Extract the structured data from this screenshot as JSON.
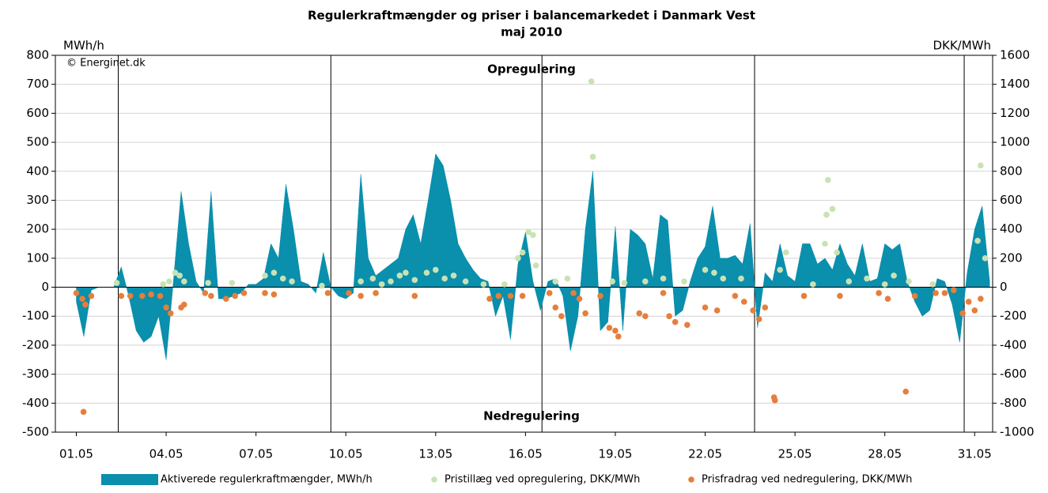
{
  "chart_data": {
    "type": "area",
    "title": "Regulerkraftmængder og priser i balancemarkedet i Danmark Vest",
    "subtitle": "maj 2010",
    "ylabel": "MWh/h",
    "y2label": "DKK/MWh",
    "source": "© Energinet.dk",
    "annotations": [
      "Opregulering",
      "Nedregulering"
    ],
    "grid": true,
    "xlim": [
      0.3,
      31.6
    ],
    "xticks": [
      {
        "value": 1,
        "label": "01.05"
      },
      {
        "value": 4,
        "label": "04.05"
      },
      {
        "value": 7,
        "label": "07.05"
      },
      {
        "value": 10,
        "label": "10.05"
      },
      {
        "value": 13,
        "label": "13.05"
      },
      {
        "value": 16,
        "label": "16.05"
      },
      {
        "value": 19,
        "label": "19.05"
      },
      {
        "value": 22,
        "label": "22.05"
      },
      {
        "value": 25,
        "label": "25.05"
      },
      {
        "value": 28,
        "label": "28.05"
      },
      {
        "value": 31,
        "label": "31.05"
      }
    ],
    "week_lines": [
      2.4,
      9.5,
      16.55,
      23.65,
      30.65
    ],
    "ylim": [
      -500,
      800
    ],
    "yticks": [
      -500,
      -400,
      -300,
      -200,
      -100,
      0,
      100,
      200,
      300,
      400,
      500,
      600,
      700,
      800
    ],
    "y2lim": [
      -1000,
      1600
    ],
    "y2ticks": [
      -1000,
      -800,
      -600,
      -400,
      -200,
      0,
      200,
      400,
      600,
      800,
      1000,
      1200,
      1400,
      1600
    ],
    "x": [
      1,
      1.25,
      1.5,
      1.75,
      2,
      2.25,
      2.5,
      2.75,
      3,
      3.25,
      3.5,
      3.75,
      4,
      4.25,
      4.5,
      4.75,
      5,
      5.25,
      5.5,
      5.75,
      6,
      6.25,
      6.5,
      6.75,
      7,
      7.25,
      7.5,
      7.75,
      8,
      8.25,
      8.5,
      8.75,
      9,
      9.25,
      9.5,
      9.75,
      10,
      10.25,
      10.5,
      10.75,
      11,
      11.25,
      11.5,
      11.75,
      12,
      12.25,
      12.5,
      12.75,
      13,
      13.25,
      13.5,
      13.75,
      14,
      14.25,
      14.5,
      14.75,
      15,
      15.25,
      15.5,
      15.75,
      16,
      16.25,
      16.5,
      16.75,
      17,
      17.25,
      17.5,
      17.75,
      18,
      18.25,
      18.5,
      18.75,
      19,
      19.25,
      19.5,
      19.75,
      20,
      20.25,
      20.5,
      20.75,
      21,
      21.25,
      21.5,
      21.75,
      22,
      22.25,
      22.5,
      22.75,
      23,
      23.25,
      23.5,
      23.75,
      24,
      24.25,
      24.5,
      24.75,
      25,
      25.25,
      25.5,
      25.75,
      26,
      26.25,
      26.5,
      26.75,
      27,
      27.25,
      27.5,
      27.75,
      28,
      28.25,
      28.5,
      28.75,
      29,
      29.25,
      29.5,
      29.75,
      30,
      30.25,
      30.5,
      30.75,
      31,
      31.25,
      31.5
    ],
    "series": [
      {
        "name": "Aktiverede regulerkraftmængder, MWh/h",
        "color": "#0a8fac",
        "values": [
          -50,
          -170,
          -10,
          0,
          0,
          0,
          70,
          -30,
          -150,
          -190,
          -170,
          -100,
          -250,
          30,
          330,
          150,
          20,
          -20,
          330,
          -40,
          -40,
          -30,
          -20,
          10,
          10,
          30,
          150,
          100,
          355,
          200,
          20,
          10,
          -20,
          120,
          0,
          -30,
          -40,
          -20,
          390,
          100,
          40,
          60,
          80,
          100,
          200,
          250,
          150,
          300,
          460,
          420,
          300,
          150,
          100,
          60,
          30,
          20,
          -100,
          -30,
          -180,
          80,
          190,
          20,
          -80,
          20,
          30,
          -30,
          -220,
          -100,
          200,
          400,
          -150,
          -120,
          210,
          -150,
          200,
          180,
          150,
          30,
          250,
          230,
          -100,
          -80,
          20,
          100,
          140,
          280,
          100,
          100,
          110,
          80,
          220,
          -140,
          50,
          20,
          150,
          40,
          20,
          150,
          150,
          80,
          100,
          60,
          150,
          80,
          40,
          150,
          20,
          30,
          150,
          130,
          150,
          20,
          -50,
          -100,
          -80,
          30,
          20,
          -60,
          -190,
          50,
          200,
          280,
          20
        ]
      },
      {
        "name": "Pristillæg ved opregulering, DKK/MWh",
        "color": "#c9e2b3",
        "axis": "y2",
        "x": [
          2.35,
          3.9,
          4.1,
          4.3,
          4.45,
          4.6,
          5.4,
          6.2,
          7.3,
          7.6,
          7.9,
          8.2,
          9.2,
          10.5,
          10.9,
          11.2,
          11.5,
          11.8,
          12.0,
          12.3,
          12.7,
          13.0,
          13.3,
          13.6,
          14.0,
          14.6,
          15.3,
          15.75,
          15.9,
          16.1,
          16.25,
          16.35,
          17.0,
          17.4,
          18.2,
          18.25,
          18.9,
          19.3,
          20.0,
          20.6,
          21.3,
          22.0,
          22.3,
          22.6,
          23.2,
          24.5,
          24.7,
          25.6,
          26.0,
          26.05,
          26.1,
          26.25,
          26.4,
          26.8,
          27.4,
          28.0,
          28.3,
          28.8,
          29.6,
          31.1,
          31.2,
          31.35
        ],
        "values": [
          30,
          20,
          40,
          100,
          80,
          40,
          30,
          30,
          80,
          100,
          60,
          40,
          10,
          40,
          60,
          20,
          40,
          80,
          100,
          50,
          100,
          120,
          60,
          80,
          40,
          20,
          20,
          200,
          240,
          380,
          360,
          150,
          40,
          60,
          1420,
          900,
          40,
          30,
          40,
          60,
          40,
          120,
          100,
          60,
          60,
          120,
          240,
          20,
          300,
          500,
          740,
          540,
          240,
          40,
          60,
          20,
          80,
          40,
          20,
          320,
          840,
          200
        ]
      },
      {
        "name": "Prisfradrag ved nedregulering, DKK/MWh",
        "color": "#e67e3c",
        "axis": "y2",
        "x": [
          1.0,
          1.2,
          1.24,
          1.3,
          1.5,
          2.5,
          2.8,
          3.2,
          3.5,
          3.8,
          4.0,
          4.15,
          4.5,
          4.6,
          5.3,
          5.5,
          6.0,
          6.3,
          6.6,
          7.3,
          7.6,
          9.4,
          10.1,
          10.5,
          11.0,
          12.3,
          14.8,
          15.1,
          15.5,
          15.9,
          16.8,
          17.0,
          17.2,
          17.6,
          17.8,
          18.0,
          18.5,
          18.8,
          19.0,
          19.1,
          19.8,
          20.0,
          20.6,
          20.8,
          21.0,
          21.4,
          22.0,
          22.4,
          23.0,
          23.3,
          23.6,
          23.8,
          24.0,
          24.3,
          24.33,
          25.3,
          26.5,
          27.8,
          28.1,
          28.7,
          29.0,
          29.7,
          30.0,
          30.3,
          30.6,
          30.8,
          31.0,
          31.2
        ],
        "values": [
          -40,
          -80,
          -860,
          -120,
          -60,
          -60,
          -60,
          -60,
          -50,
          -60,
          -140,
          -180,
          -140,
          -120,
          -40,
          -60,
          -80,
          -60,
          -40,
          -40,
          -50,
          -40,
          -40,
          -60,
          -40,
          -60,
          -80,
          -60,
          -60,
          -60,
          -40,
          -140,
          -200,
          -40,
          -80,
          -180,
          -60,
          -280,
          -300,
          -340,
          -180,
          -200,
          -40,
          -200,
          -240,
          -260,
          -140,
          -160,
          -60,
          -100,
          -160,
          -220,
          -140,
          -760,
          -780,
          -60,
          -60,
          -40,
          -80,
          -720,
          -60,
          -40,
          -40,
          -20,
          -180,
          -100,
          -160,
          -80
        ]
      }
    ]
  }
}
